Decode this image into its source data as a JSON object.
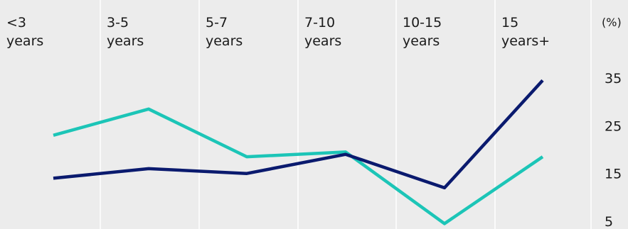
{
  "chart_data": {
    "type": "line",
    "categories": [
      "<3 years",
      "3-5 years",
      "5-7 years",
      "7-10 years",
      "10-15 years",
      "15 years+"
    ],
    "category_label_lines": [
      [
        "<3",
        "years"
      ],
      [
        "3-5",
        "years"
      ],
      [
        "5-7",
        "years"
      ],
      [
        "7-10",
        "years"
      ],
      [
        "10-15",
        "years"
      ],
      [
        "15",
        "years+"
      ]
    ],
    "series": [
      {
        "color": "#1cc5b7",
        "values": [
          23,
          28.5,
          18.5,
          19.5,
          4.5,
          18.5
        ]
      },
      {
        "color": "#0a1a6e",
        "values": [
          14,
          16,
          15,
          19,
          12,
          34.5
        ]
      }
    ],
    "unit": "(%)",
    "yticks": [
      35,
      25,
      15,
      5
    ],
    "ylim": [
      3.5,
      38
    ],
    "grid": "vertical",
    "background": "#ececec"
  }
}
